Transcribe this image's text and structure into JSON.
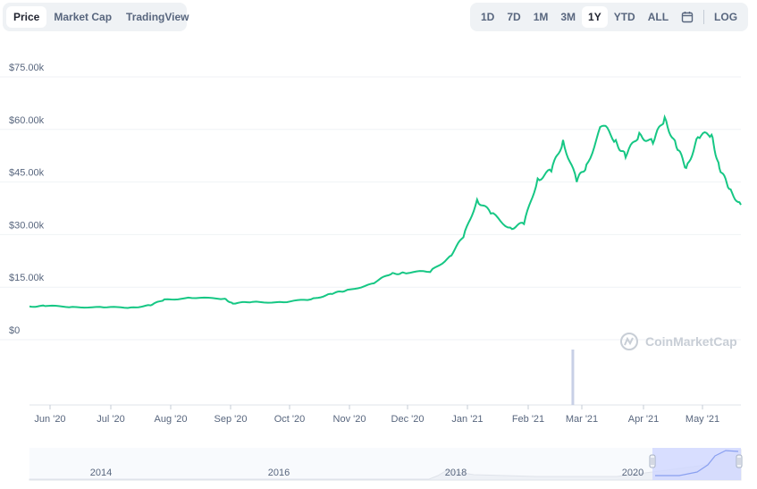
{
  "tabs_left": [
    {
      "label": "Price",
      "active": true
    },
    {
      "label": "Market Cap",
      "active": false
    },
    {
      "label": "TradingView",
      "active": false
    }
  ],
  "tabs_right": [
    {
      "label": "1D",
      "active": false
    },
    {
      "label": "7D",
      "active": false
    },
    {
      "label": "1M",
      "active": false
    },
    {
      "label": "3M",
      "active": false
    },
    {
      "label": "1Y",
      "active": true
    },
    {
      "label": "YTD",
      "active": false
    },
    {
      "label": "ALL",
      "active": false
    }
  ],
  "calendar_icon": "calendar-icon",
  "log_label": "LOG",
  "watermark": "CoinMarketCap",
  "colors": {
    "line": "#16c784",
    "grid": "#eff2f5",
    "text": "#58667e",
    "volume": "#c8d0e6",
    "nav_selection": "#cfd7ff"
  },
  "chart_data": {
    "type": "line",
    "ylim": [
      0,
      75000
    ],
    "yticks": [
      {
        "value": 75000,
        "label": "$75.00k"
      },
      {
        "value": 60000,
        "label": "$60.00k"
      },
      {
        "value": 45000,
        "label": "$45.00k"
      },
      {
        "value": 30000,
        "label": "$30.00k"
      },
      {
        "value": 15000,
        "label": "$15.00k"
      },
      {
        "value": 0,
        "label": "$0"
      }
    ],
    "xticks": [
      "Jun '20",
      "Jul '20",
      "Aug '20",
      "Sep '20",
      "Oct '20",
      "Nov '20",
      "Dec '20",
      "Jan '21",
      "Feb '21",
      "Mar '21",
      "Apr '21",
      "May '21"
    ],
    "x": [
      "2020-05-24",
      "2020-06-01",
      "2020-06-15",
      "2020-07-01",
      "2020-07-15",
      "2020-07-25",
      "2020-08-01",
      "2020-08-15",
      "2020-09-01",
      "2020-09-05",
      "2020-09-15",
      "2020-10-01",
      "2020-10-15",
      "2020-10-25",
      "2020-11-01",
      "2020-11-15",
      "2020-11-25",
      "2020-12-01",
      "2020-12-15",
      "2020-12-25",
      "2021-01-01",
      "2021-01-08",
      "2021-01-15",
      "2021-01-25",
      "2021-02-01",
      "2021-02-08",
      "2021-02-15",
      "2021-02-21",
      "2021-02-28",
      "2021-03-05",
      "2021-03-13",
      "2021-03-20",
      "2021-03-25",
      "2021-04-01",
      "2021-04-08",
      "2021-04-14",
      "2021-04-20",
      "2021-04-25",
      "2021-05-01",
      "2021-05-08",
      "2021-05-12",
      "2021-05-17",
      "2021-05-23"
    ],
    "y": [
      9500,
      9600,
      9400,
      9200,
      9200,
      9800,
      11500,
      11900,
      11700,
      10300,
      10800,
      10700,
      11500,
      13100,
      13800,
      16000,
      18700,
      19200,
      19300,
      23800,
      29200,
      40000,
      36000,
      32000,
      33000,
      46000,
      48000,
      57000,
      45000,
      50000,
      61000,
      57000,
      52000,
      59000,
      56000,
      63500,
      55000,
      49000,
      57800,
      58500,
      49000,
      43000,
      38500
    ],
    "volume_spike": {
      "x": "2021-02-26",
      "relative": 1.0
    }
  },
  "navigator": {
    "labels": [
      "2014",
      "2016",
      "2018",
      "2020"
    ]
  }
}
